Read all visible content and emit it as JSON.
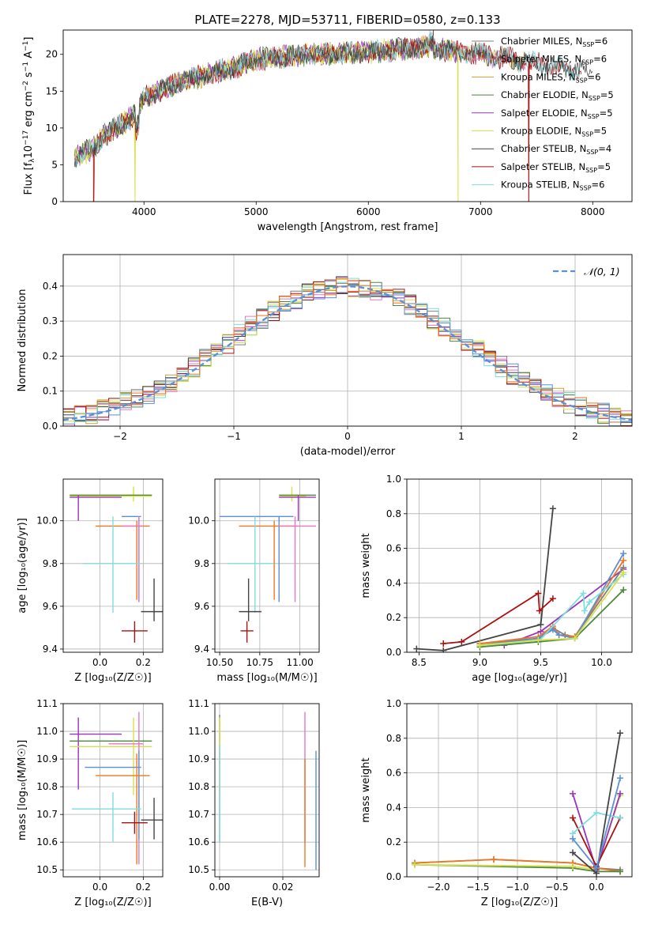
{
  "title": "PLATE=2278, MJD=53711, FIBERID=0580, z=0.133",
  "colors": {
    "Chabrier MILES": "#7f7f7f",
    "Salpeter MILES": "#e377c2",
    "Kroupa MILES": "#d0a030",
    "Chabrier ELODIE": "#4a8a3a",
    "Salpeter ELODIE": "#9a33bb",
    "Kroupa ELODIE": "#d8e04a",
    "Chabrier STELIB": "#444444",
    "Salpeter STELIB": "#aa1111",
    "Kroupa STELIB": "#7fdddd",
    "blue": "#5b8fd6",
    "orange": "#ee7722",
    "lime": "#9acd32"
  },
  "legend_spectrum": [
    {
      "name": "Chabrier MILES",
      "label": "Chabrier MILES, N",
      "sub": "SSP",
      "n": "=6"
    },
    {
      "name": "Salpeter MILES",
      "label": "Salpeter MILES, N",
      "sub": "SSP",
      "n": "=6"
    },
    {
      "name": "Kroupa MILES",
      "label": "Kroupa MILES, N",
      "sub": "SSP",
      "n": "=6"
    },
    {
      "name": "Chabrier ELODIE",
      "label": "Chabrier ELODIE, N",
      "sub": "SSP",
      "n": "=5"
    },
    {
      "name": "Salpeter ELODIE",
      "label": "Salpeter ELODIE, N",
      "sub": "SSP",
      "n": "=5"
    },
    {
      "name": "Kroupa ELODIE",
      "label": "Kroupa ELODIE, N",
      "sub": "SSP",
      "n": "=5"
    },
    {
      "name": "Chabrier STELIB",
      "label": "Chabrier STELIB, N",
      "sub": "SSP",
      "n": "=4"
    },
    {
      "name": "Salpeter STELIB",
      "label": "Salpeter STELIB, N",
      "sub": "SSP",
      "n": "=5"
    },
    {
      "name": "Kroupa STELIB",
      "label": "Kroupa STELIB, N",
      "sub": "SSP",
      "n": "=6"
    }
  ],
  "chart_data": [
    {
      "id": "spectrum",
      "type": "line",
      "title": "PLATE=2278, MJD=53711, FIBERID=0580, z=0.133",
      "xlabel": "wavelength [Angstrom, rest frame]",
      "ylabel_parts": [
        "Flux [f",
        "λ",
        "10",
        "−17",
        " erg cm",
        "−2",
        " s",
        "−1",
        " A",
        "−1",
        "]"
      ],
      "xlim": [
        3280,
        8350
      ],
      "ylim": [
        0,
        23.3
      ],
      "xticks": [
        4000,
        5000,
        6000,
        7000,
        8000
      ],
      "yticks": [
        0,
        5,
        10,
        15,
        20
      ],
      "xtick_labels": [
        "4000",
        "5000",
        "6000",
        "7000",
        "8000"
      ],
      "ytick_labels": [
        "0",
        "5",
        "10",
        "15",
        "20"
      ],
      "continuum_knots": [
        [
          3380,
          6.0
        ],
        [
          3550,
          7.3
        ],
        [
          3650,
          9.0
        ],
        [
          3800,
          10.5
        ],
        [
          3900,
          11.5
        ],
        [
          4000,
          14.0
        ],
        [
          4200,
          15.5
        ],
        [
          4500,
          17.0
        ],
        [
          4800,
          18.2
        ],
        [
          5000,
          19.3
        ],
        [
          5500,
          20.0
        ],
        [
          6000,
          20.3
        ],
        [
          6500,
          21.0
        ],
        [
          7000,
          20.0
        ],
        [
          7500,
          18.8
        ],
        [
          7900,
          17.8
        ]
      ],
      "dropouts": [
        {
          "series": "Salpeter STELIB",
          "x": 3550
        },
        {
          "series": "Kroupa ELODIE",
          "x": 3920
        },
        {
          "series": "Kroupa ELODIE",
          "x": 6800
        },
        {
          "series": "Salpeter STELIB",
          "x": 7430
        }
      ],
      "legend_position": "upper right"
    },
    {
      "id": "residuals",
      "type": "step",
      "xlabel": "(data-model)/error",
      "ylabel": "Normed distribution",
      "xlim": [
        -2.5,
        2.5
      ],
      "ylim": [
        0,
        0.49
      ],
      "xticks": [
        -2,
        -1,
        0,
        1,
        2
      ],
      "yticks": [
        0,
        0.1,
        0.2,
        0.3,
        0.4
      ],
      "xtick_labels": [
        "−2",
        "−1",
        "0",
        "1",
        "2"
      ],
      "ytick_labels": [
        "0.0",
        "0.1",
        "0.2",
        "0.3",
        "0.4"
      ],
      "bin_width": 0.1,
      "reference": {
        "label": "𝒩(0, 1)",
        "style": "dashed",
        "color": "#5b8fd6"
      },
      "legend_position": "upper right",
      "grid": true
    },
    {
      "id": "age-Z",
      "type": "errorbar",
      "xlabel": "Z [log₁₀(Z/Z☉)]",
      "ylabel": "age  [log₁₀(age/yr)]",
      "xlim": [
        -0.17,
        0.29
      ],
      "ylim": [
        9.385,
        10.195
      ],
      "xticks": [
        0.0,
        0.2
      ],
      "yticks": [
        9.4,
        9.6,
        9.8,
        10.0
      ],
      "xtick_labels": [
        "0.0",
        "0.2"
      ],
      "ytick_labels": [
        "9.4",
        "9.6",
        "9.8",
        "10.0"
      ],
      "grid": true,
      "points": [
        {
          "s": "Kroupa ELODIE",
          "x": 0.155,
          "xlo": -0.14,
          "xhi": 0.24,
          "y": 10.115,
          "ylo": 10.09,
          "yhi": 10.16
        },
        {
          "s": "Chabrier ELODIE",
          "x": 0.06,
          "xlo": -0.14,
          "xhi": 0.24,
          "y": 10.12,
          "ylo": 10.12,
          "yhi": 10.12
        },
        {
          "s": "Salpeter ELODIE",
          "x": -0.1,
          "xlo": -0.14,
          "xhi": 0.1,
          "y": 10.11,
          "ylo": 10.0,
          "yhi": 10.12
        },
        {
          "s": "blue",
          "x": 0.18,
          "xlo": 0.1,
          "xhi": 0.19,
          "y": 10.02,
          "ylo": 9.62,
          "yhi": 10.02
        },
        {
          "s": "orange",
          "x": 0.17,
          "xlo": -0.02,
          "xhi": 0.23,
          "y": 9.975,
          "ylo": 9.63,
          "yhi": 10.0
        },
        {
          "s": "Salpeter MILES",
          "x": 0.18,
          "xlo": 0.1,
          "xhi": 0.2,
          "y": 9.975,
          "ylo": 9.62,
          "yhi": 10.02
        },
        {
          "s": "Kroupa STELIB",
          "x": 0.06,
          "xlo": -0.08,
          "xhi": 0.19,
          "y": 9.8,
          "ylo": 9.57,
          "yhi": 10.02
        },
        {
          "s": "Chabrier STELIB",
          "x": 0.25,
          "xlo": 0.19,
          "xhi": 0.3,
          "y": 9.575,
          "ylo": 9.53,
          "yhi": 9.73
        },
        {
          "s": "Salpeter STELIB",
          "x": 0.16,
          "xlo": 0.1,
          "xhi": 0.22,
          "y": 9.485,
          "ylo": 9.43,
          "yhi": 9.53
        }
      ]
    },
    {
      "id": "age-mass",
      "type": "errorbar",
      "xlabel": "mass [log₁₀(M/M☉)]",
      "ylabel": "",
      "xlim": [
        10.47,
        11.12
      ],
      "ylim": [
        9.385,
        10.195
      ],
      "xticks": [
        10.5,
        10.75,
        11.0
      ],
      "yticks": [
        9.4,
        9.6,
        9.8,
        10.0
      ],
      "xtick_labels": [
        "10.50",
        "10.75",
        "11.00"
      ],
      "ytick_labels": [
        "9.4",
        "9.6",
        "9.8",
        "10.0"
      ],
      "grid": true,
      "points": [
        {
          "s": "Kroupa ELODIE",
          "x": 10.95,
          "xlo": 10.87,
          "xhi": 11.04,
          "y": 10.115,
          "ylo": 10.09,
          "yhi": 10.16
        },
        {
          "s": "Chabrier ELODIE",
          "x": 10.97,
          "xlo": 10.87,
          "xhi": 11.1,
          "y": 10.12,
          "ylo": 10.12,
          "yhi": 10.12
        },
        {
          "s": "Salpeter ELODIE",
          "x": 10.99,
          "xlo": 10.87,
          "xhi": 11.1,
          "y": 10.11,
          "ylo": 10.0,
          "yhi": 10.12
        },
        {
          "s": "blue",
          "x": 10.87,
          "xlo": 10.5,
          "xhi": 10.96,
          "y": 10.02,
          "ylo": 9.62,
          "yhi": 10.02
        },
        {
          "s": "orange",
          "x": 10.84,
          "xlo": 10.62,
          "xhi": 10.98,
          "y": 9.975,
          "ylo": 9.63,
          "yhi": 10.0
        },
        {
          "s": "Salpeter MILES",
          "x": 10.97,
          "xlo": 10.87,
          "xhi": 11.1,
          "y": 9.975,
          "ylo": 9.62,
          "yhi": 10.02
        },
        {
          "s": "Kroupa STELIB",
          "x": 10.72,
          "xlo": 10.55,
          "xhi": 10.83,
          "y": 9.8,
          "ylo": 9.57,
          "yhi": 10.02
        },
        {
          "s": "Chabrier STELIB",
          "x": 10.68,
          "xlo": 10.62,
          "xhi": 10.76,
          "y": 9.575,
          "ylo": 9.53,
          "yhi": 9.73
        },
        {
          "s": "Salpeter STELIB",
          "x": 10.67,
          "xlo": 10.63,
          "xhi": 10.71,
          "y": 9.485,
          "ylo": 9.43,
          "yhi": 9.53
        }
      ]
    },
    {
      "id": "mass-Z",
      "type": "errorbar",
      "xlabel": "Z [log₁₀(Z/Z☉)]",
      "ylabel": "mass [log₁₀(M/M☉)]",
      "xlim": [
        -0.17,
        0.29
      ],
      "ylim": [
        10.475,
        11.1
      ],
      "xticks": [
        0.0,
        0.2
      ],
      "yticks": [
        10.5,
        10.6,
        10.7,
        10.8,
        10.9,
        11.0,
        11.1
      ],
      "xtick_labels": [
        "0.0",
        "0.2"
      ],
      "ytick_labels": [
        "10.5",
        "10.6",
        "10.7",
        "10.8",
        "10.9",
        "11.0",
        "11.1"
      ],
      "grid": true,
      "points": [
        {
          "s": "Salpeter ELODIE",
          "x": -0.1,
          "xlo": -0.14,
          "xhi": 0.1,
          "y": 10.99,
          "ylo": 10.79,
          "yhi": 11.05
        },
        {
          "s": "Chabrier ELODIE",
          "x": 0.06,
          "xlo": -0.14,
          "xhi": 0.24,
          "y": 10.965,
          "ylo": 10.965,
          "yhi": 10.965
        },
        {
          "s": "Kroupa ELODIE",
          "x": 0.155,
          "xlo": -0.14,
          "xhi": 0.24,
          "y": 10.945,
          "ylo": 10.77,
          "yhi": 11.05
        },
        {
          "s": "Salpeter MILES",
          "x": 0.18,
          "xlo": 0.04,
          "xhi": 0.2,
          "y": 10.955,
          "ylo": 10.52,
          "yhi": 11.07
        },
        {
          "s": "blue",
          "x": 0.18,
          "xlo": -0.07,
          "xhi": 0.19,
          "y": 10.87,
          "ylo": 10.61,
          "yhi": 10.93
        },
        {
          "s": "orange",
          "x": 0.17,
          "xlo": -0.02,
          "xhi": 0.23,
          "y": 10.84,
          "ylo": 10.52,
          "yhi": 10.92
        },
        {
          "s": "Kroupa STELIB",
          "x": 0.06,
          "xlo": -0.13,
          "xhi": 0.19,
          "y": 10.72,
          "ylo": 10.6,
          "yhi": 10.78
        },
        {
          "s": "Chabrier STELIB",
          "x": 0.25,
          "xlo": 0.19,
          "xhi": 0.31,
          "y": 10.68,
          "ylo": 10.61,
          "yhi": 10.76
        },
        {
          "s": "Salpeter STELIB",
          "x": 0.16,
          "xlo": 0.1,
          "xhi": 0.22,
          "y": 10.67,
          "ylo": 10.63,
          "yhi": 10.71
        }
      ]
    },
    {
      "id": "mass-EBV",
      "type": "errorbar",
      "xlabel": "E(B-V)",
      "ylabel": "",
      "xlim": [
        -0.0015,
        0.0315
      ],
      "ylim": [
        10.475,
        11.1
      ],
      "xticks": [
        0.0,
        0.02
      ],
      "yticks": [
        10.5,
        10.6,
        10.7,
        10.8,
        10.9,
        11.0,
        11.1
      ],
      "xtick_labels": [
        "0.00",
        "0.02"
      ],
      "ytick_labels": [
        "10.5",
        "10.6",
        "10.7",
        "10.8",
        "10.9",
        "11.0",
        "11.1"
      ],
      "grid": true,
      "points": [
        {
          "s": "Chabrier MILES",
          "x": 0.0,
          "xlo": 0.0,
          "xhi": 0.0,
          "y": 10.85,
          "ylo": 10.6,
          "yhi": 11.06
        },
        {
          "s": "Kroupa ELODIE",
          "x": 0.0,
          "xlo": 0.0,
          "xhi": 0.0,
          "y": 10.9,
          "ylo": 10.78,
          "yhi": 11.05
        },
        {
          "s": "Kroupa STELIB",
          "x": 0.0,
          "xlo": 0.0,
          "xhi": 0.0,
          "y": 10.72,
          "ylo": 10.6,
          "yhi": 10.95
        },
        {
          "s": "Salpeter MILES",
          "x": 0.027,
          "xlo": 0.027,
          "xhi": 0.027,
          "y": 10.95,
          "ylo": 10.6,
          "yhi": 11.07
        },
        {
          "s": "orange",
          "x": 0.027,
          "xlo": 0.027,
          "xhi": 0.027,
          "y": 10.84,
          "ylo": 10.51,
          "yhi": 10.9
        },
        {
          "s": "blue",
          "x": 0.0305,
          "xlo": 0.0305,
          "xhi": 0.0305,
          "y": 10.87,
          "ylo": 10.5,
          "yhi": 10.93
        }
      ]
    },
    {
      "id": "weight-age",
      "type": "line",
      "xlabel": "age  [log₁₀(age/yr)]",
      "ylabel": "mass weight",
      "xlim": [
        8.4,
        10.25
      ],
      "ylim": [
        0,
        1.0
      ],
      "xticks": [
        8.5,
        9.0,
        9.5,
        10.0
      ],
      "yticks": [
        0.0,
        0.2,
        0.4,
        0.6,
        0.8,
        1.0
      ],
      "xtick_labels": [
        "8.5",
        "9.0",
        "9.5",
        "10.0"
      ],
      "ytick_labels": [
        "0.0",
        "0.2",
        "0.4",
        "0.6",
        "0.8",
        "1.0"
      ],
      "grid": true,
      "series": [
        {
          "s": "Chabrier STELIB",
          "x": [
            8.48,
            8.7,
            9.5,
            9.6
          ],
          "y": [
            0.02,
            0.01,
            0.16,
            0.83
          ]
        },
        {
          "s": "Salpeter STELIB",
          "x": [
            8.7,
            8.85,
            9.48,
            9.49,
            9.6
          ],
          "y": [
            0.05,
            0.06,
            0.34,
            0.24,
            0.31
          ]
        },
        {
          "s": "Salpeter ELODIE",
          "x": [
            9.2,
            9.5,
            10.18
          ],
          "y": [
            0.04,
            0.12,
            0.48
          ]
        },
        {
          "s": "Chabrier MILES",
          "x": [
            9.0,
            9.48,
            9.6,
            9.7,
            9.78,
            10.18
          ],
          "y": [
            0.05,
            0.08,
            0.14,
            0.1,
            0.09,
            0.49
          ]
        },
        {
          "s": "orange",
          "x": [
            9.0,
            9.48,
            9.6,
            9.65,
            9.78,
            10.18
          ],
          "y": [
            0.05,
            0.09,
            0.15,
            0.1,
            0.09,
            0.53
          ]
        },
        {
          "s": "blue",
          "x": [
            9.0,
            9.48,
            9.6,
            9.65,
            9.78,
            10.18
          ],
          "y": [
            0.04,
            0.08,
            0.13,
            0.1,
            0.08,
            0.57
          ]
        },
        {
          "s": "Kroupa STELIB",
          "x": [
            9.0,
            9.48,
            9.85,
            9.86,
            9.9,
            10.18
          ],
          "y": [
            0.04,
            0.06,
            0.34,
            0.24,
            0.29,
            0.45
          ]
        },
        {
          "s": "Chabrier ELODIE",
          "x": [
            9.0,
            9.48,
            9.78,
            10.18
          ],
          "y": [
            0.03,
            0.06,
            0.08,
            0.36
          ]
        },
        {
          "s": "Kroupa ELODIE",
          "x": [
            9.0,
            9.48,
            9.78,
            10.18
          ],
          "y": [
            0.04,
            0.07,
            0.08,
            0.46
          ]
        }
      ]
    },
    {
      "id": "weight-Z",
      "type": "line",
      "xlabel": "Z [log₁₀(Z/Z☉)]",
      "ylabel": "mass weight",
      "xlim": [
        -2.4,
        0.45
      ],
      "ylim": [
        0,
        1.0
      ],
      "xticks": [
        -2.0,
        -1.5,
        -1.0,
        -0.5,
        0.0
      ],
      "yticks": [
        0.0,
        0.2,
        0.4,
        0.6,
        0.8,
        1.0
      ],
      "xtick_labels": [
        "−2.0",
        "−1.5",
        "−1.0",
        "−0.5",
        "0.0"
      ],
      "ytick_labels": [
        "0.0",
        "0.2",
        "0.4",
        "0.6",
        "0.8",
        "1.0"
      ],
      "grid": true,
      "series": [
        {
          "s": "Chabrier MILES",
          "x": [
            -2.3,
            -1.3,
            -0.3,
            0.0,
            0.3
          ],
          "y": [
            0.08,
            0.1,
            0.08,
            0.05,
            0.04
          ]
        },
        {
          "s": "orange",
          "x": [
            -2.3,
            -1.3,
            -0.3,
            0.0,
            0.3
          ],
          "y": [
            0.08,
            0.1,
            0.08,
            0.05,
            0.03
          ]
        },
        {
          "s": "Chabrier ELODIE",
          "x": [
            -2.3,
            -0.3,
            0.0,
            0.3
          ],
          "y": [
            0.07,
            0.05,
            0.03,
            0.03
          ]
        },
        {
          "s": "Kroupa ELODIE",
          "x": [
            -2.3,
            -0.3,
            0.0,
            0.3
          ],
          "y": [
            0.07,
            0.06,
            0.04,
            0.47
          ]
        },
        {
          "s": "Salpeter ELODIE",
          "x": [
            -0.3,
            0.0,
            0.3
          ],
          "y": [
            0.48,
            0.04,
            0.48
          ]
        },
        {
          "s": "Salpeter STELIB",
          "x": [
            -0.3,
            0.0,
            0.3
          ],
          "y": [
            0.34,
            0.06,
            0.34
          ]
        },
        {
          "s": "Kroupa STELIB",
          "x": [
            -0.3,
            0.0,
            0.3
          ],
          "y": [
            0.25,
            0.37,
            0.34
          ]
        },
        {
          "s": "Chabrier STELIB",
          "x": [
            -0.3,
            0.0,
            0.3
          ],
          "y": [
            0.14,
            0.02,
            0.83
          ]
        },
        {
          "s": "blue",
          "x": [
            -0.3,
            0.0,
            0.3
          ],
          "y": [
            0.22,
            0.05,
            0.57
          ]
        }
      ]
    }
  ]
}
